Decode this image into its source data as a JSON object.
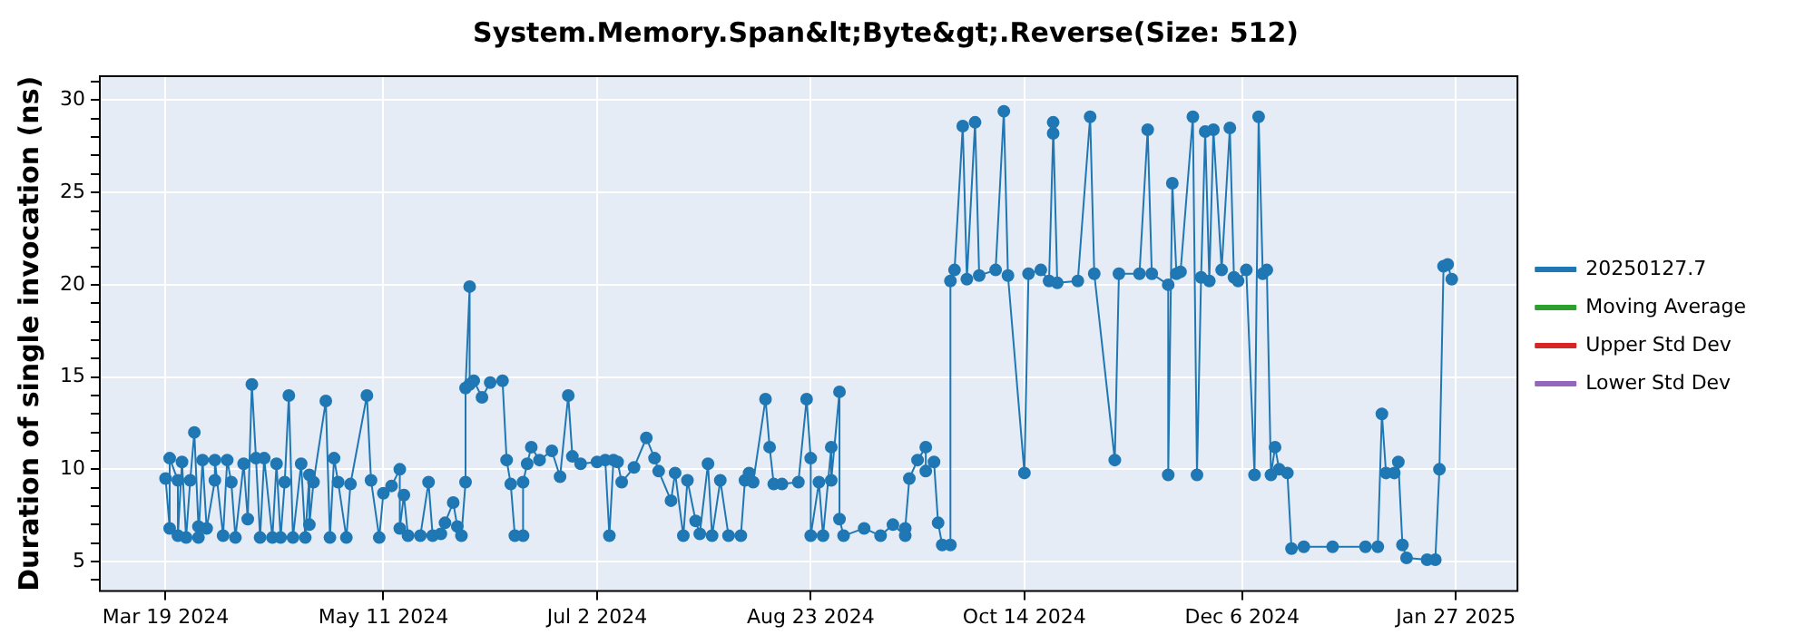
{
  "chart_data": {
    "type": "line",
    "title": "System.Memory.Span&lt;Byte&gt;.Reverse(Size: 512)",
    "ylabel": "Duration of single invocation (ns)",
    "marker": "circle",
    "line_style": "solid",
    "grid": true,
    "legend": "right",
    "xlim": [
      "2024-03-03",
      "2025-02-11"
    ],
    "xticks": [
      {
        "value": "2024-03-19",
        "label": "Mar 19 2024"
      },
      {
        "value": "2024-05-11",
        "label": "May 11 2024"
      },
      {
        "value": "2024-07-02",
        "label": "Jul 2 2024"
      },
      {
        "value": "2024-08-23",
        "label": "Aug 23 2024"
      },
      {
        "value": "2024-10-14",
        "label": "Oct 14 2024"
      },
      {
        "value": "2024-12-06",
        "label": "Dec 6 2024"
      },
      {
        "value": "2025-01-27",
        "label": "Jan 27 2025"
      }
    ],
    "ylim": [
      3.4,
      31.3
    ],
    "yticks": [
      {
        "value": 4,
        "label": null
      },
      5,
      {
        "value": 6,
        "label": null
      },
      {
        "value": 7,
        "label": null
      },
      {
        "value": 8,
        "label": null
      },
      {
        "value": 9,
        "label": null
      },
      10,
      {
        "value": 11,
        "label": null
      },
      {
        "value": 12,
        "label": null
      },
      {
        "value": 13,
        "label": null
      },
      {
        "value": 14,
        "label": null
      },
      15,
      {
        "value": 16,
        "label": null
      },
      {
        "value": 17,
        "label": null
      },
      {
        "value": 18,
        "label": null
      },
      {
        "value": 19,
        "label": null
      },
      20,
      {
        "value": 21,
        "label": null
      },
      {
        "value": 22,
        "label": null
      },
      {
        "value": 23,
        "label": null
      },
      {
        "value": 24,
        "label": null
      },
      25,
      {
        "value": 26,
        "label": null
      },
      {
        "value": 27,
        "label": null
      },
      {
        "value": 28,
        "label": null
      },
      {
        "value": 29,
        "label": null
      },
      30,
      {
        "value": 31,
        "label": null
      }
    ],
    "series": [
      {
        "name": "20250127.7",
        "color": "#1f77b4",
        "x": [
          "2024-03-19",
          "2024-03-20",
          "2024-03-20",
          "2024-03-22",
          "2024-03-22",
          "2024-03-23",
          "2024-03-24",
          "2024-03-25",
          "2024-03-26",
          "2024-03-27",
          "2024-03-27",
          "2024-03-28",
          "2024-03-29",
          "2024-03-31",
          "2024-03-31",
          "2024-04-02",
          "2024-04-03",
          "2024-04-04",
          "2024-04-05",
          "2024-04-07",
          "2024-04-08",
          "2024-04-09",
          "2024-04-10",
          "2024-04-11",
          "2024-04-12",
          "2024-04-14",
          "2024-04-15",
          "2024-04-16",
          "2024-04-17",
          "2024-04-18",
          "2024-04-19",
          "2024-04-21",
          "2024-04-22",
          "2024-04-23",
          "2024-04-23",
          "2024-04-24",
          "2024-04-27",
          "2024-04-28",
          "2024-04-29",
          "2024-04-30",
          "2024-05-02",
          "2024-05-03",
          "2024-05-07",
          "2024-05-08",
          "2024-05-10",
          "2024-05-11",
          "2024-05-13",
          "2024-05-15",
          "2024-05-15",
          "2024-05-16",
          "2024-05-17",
          "2024-05-20",
          "2024-05-22",
          "2024-05-23",
          "2024-05-25",
          "2024-05-26",
          "2024-05-28",
          "2024-05-29",
          "2024-05-30",
          "2024-05-31",
          "2024-05-31",
          "2024-06-01",
          "2024-06-01",
          "2024-06-02",
          "2024-06-04",
          "2024-06-06",
          "2024-06-09",
          "2024-06-10",
          "2024-06-11",
          "2024-06-12",
          "2024-06-14",
          "2024-06-14",
          "2024-06-15",
          "2024-06-16",
          "2024-06-18",
          "2024-06-21",
          "2024-06-23",
          "2024-06-25",
          "2024-06-26",
          "2024-06-28",
          "2024-07-02",
          "2024-07-04",
          "2024-07-05",
          "2024-07-06",
          "2024-07-07",
          "2024-07-08",
          "2024-07-11",
          "2024-07-14",
          "2024-07-16",
          "2024-07-17",
          "2024-07-20",
          "2024-07-21",
          "2024-07-23",
          "2024-07-24",
          "2024-07-26",
          "2024-07-27",
          "2024-07-29",
          "2024-07-30",
          "2024-08-01",
          "2024-08-03",
          "2024-08-06",
          "2024-08-07",
          "2024-08-08",
          "2024-08-09",
          "2024-08-12",
          "2024-08-13",
          "2024-08-14",
          "2024-08-16",
          "2024-08-20",
          "2024-08-22",
          "2024-08-23",
          "2024-08-23",
          "2024-08-25",
          "2024-08-26",
          "2024-08-28",
          "2024-08-28",
          "2024-08-30",
          "2024-08-30",
          "2024-08-31",
          "2024-09-05",
          "2024-09-09",
          "2024-09-12",
          "2024-09-15",
          "2024-09-15",
          "2024-09-16",
          "2024-09-18",
          "2024-09-20",
          "2024-09-20",
          "2024-09-22",
          "2024-09-23",
          "2024-09-24",
          "2024-09-26",
          "2024-09-26",
          "2024-09-27",
          "2024-09-29",
          "2024-09-30",
          "2024-10-02",
          "2024-10-03",
          "2024-10-07",
          "2024-10-09",
          "2024-10-10",
          "2024-10-14",
          "2024-10-15",
          "2024-10-18",
          "2024-10-20",
          "2024-10-21",
          "2024-10-21",
          "2024-10-22",
          "2024-10-27",
          "2024-10-30",
          "2024-10-31",
          "2024-11-05",
          "2024-11-06",
          "2024-11-11",
          "2024-11-13",
          "2024-11-14",
          "2024-11-18",
          "2024-11-18",
          "2024-11-19",
          "2024-11-20",
          "2024-11-21",
          "2024-11-24",
          "2024-11-25",
          "2024-11-26",
          "2024-11-27",
          "2024-11-28",
          "2024-11-29",
          "2024-12-01",
          "2024-12-03",
          "2024-12-04",
          "2024-12-05",
          "2024-12-07",
          "2024-12-09",
          "2024-12-10",
          "2024-12-11",
          "2024-12-12",
          "2024-12-13",
          "2024-12-14",
          "2024-12-15",
          "2024-12-17",
          "2024-12-18",
          "2024-12-21",
          "2024-12-28",
          "2025-01-05",
          "2025-01-08",
          "2025-01-09",
          "2025-01-10",
          "2025-01-12",
          "2025-01-13",
          "2025-01-14",
          "2025-01-15",
          "2025-01-20",
          "2025-01-22",
          "2025-01-23",
          "2025-01-24",
          "2025-01-25",
          "2025-01-26"
        ],
        "values": [
          9.5,
          6.8,
          10.6,
          9.4,
          6.4,
          10.4,
          6.3,
          9.4,
          12.0,
          6.9,
          6.3,
          10.5,
          6.8,
          9.4,
          10.5,
          6.4,
          10.5,
          9.3,
          6.3,
          10.3,
          7.3,
          14.6,
          10.6,
          6.3,
          10.6,
          6.3,
          10.3,
          6.3,
          9.3,
          14.0,
          6.3,
          10.3,
          6.3,
          9.7,
          7.0,
          9.3,
          13.7,
          6.3,
          10.6,
          9.3,
          6.3,
          9.2,
          14.0,
          9.4,
          6.3,
          8.7,
          9.1,
          10.0,
          6.8,
          8.6,
          6.4,
          6.4,
          9.3,
          6.4,
          6.5,
          7.1,
          8.2,
          6.9,
          6.4,
          9.3,
          14.4,
          19.9,
          14.6,
          14.8,
          13.9,
          14.7,
          14.8,
          10.5,
          9.2,
          6.4,
          6.4,
          9.3,
          10.3,
          11.2,
          10.5,
          11.0,
          9.6,
          14.0,
          10.7,
          10.3,
          10.4,
          10.5,
          6.4,
          10.5,
          10.4,
          9.3,
          10.1,
          11.7,
          10.6,
          9.9,
          8.3,
          9.8,
          6.4,
          9.4,
          7.2,
          6.5,
          10.3,
          6.4,
          9.4,
          6.4,
          6.4,
          9.4,
          9.8,
          9.3,
          13.8,
          11.2,
          9.2,
          9.2,
          9.3,
          13.8,
          10.6,
          6.4,
          9.3,
          6.4,
          11.2,
          9.4,
          14.2,
          7.3,
          6.4,
          6.8,
          6.4,
          7.0,
          6.4,
          6.8,
          9.5,
          10.5,
          11.2,
          9.9,
          10.4,
          7.1,
          5.9,
          5.9,
          20.2,
          20.8,
          28.6,
          20.3,
          28.8,
          20.5,
          20.8,
          29.4,
          20.5,
          9.8,
          20.6,
          20.8,
          20.2,
          28.2,
          28.8,
          20.1,
          20.2,
          29.1,
          20.6,
          10.5,
          20.6,
          20.6,
          28.4,
          20.6,
          20.0,
          9.7,
          25.5,
          20.6,
          20.7,
          29.1,
          9.7,
          20.4,
          28.3,
          20.2,
          28.4,
          20.8,
          28.5,
          20.4,
          20.2,
          20.8,
          9.7,
          29.1,
          20.6,
          20.8,
          9.7,
          11.2,
          10.0,
          9.8,
          5.7,
          5.8,
          5.8,
          5.8,
          5.8,
          13.0,
          9.8,
          9.8,
          10.4,
          5.9,
          5.2,
          5.1,
          5.1,
          10.0,
          21.0,
          21.1,
          20.3
        ]
      },
      {
        "name": "Moving Average",
        "color": "#2ca02c"
      },
      {
        "name": "Upper Std Dev",
        "color": "#d62728"
      },
      {
        "name": "Lower Std Dev",
        "color": "#9467bd"
      }
    ]
  }
}
